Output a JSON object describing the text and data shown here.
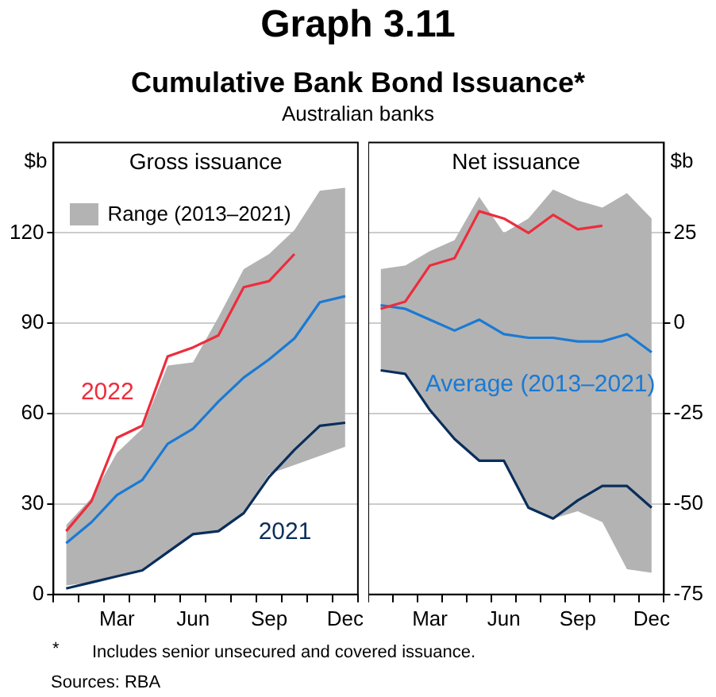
{
  "chart_data": [
    {
      "type": "line",
      "title": "Gross issuance",
      "ylabel": "$b",
      "annotations": [
        "Graph 3.11",
        "Cumulative Bank Bond Issuance*",
        "Australian banks",
        "*",
        "Includes senior unsecured and covered issuance.",
        "Sources: RBA",
        "Range (2013–2021)"
      ],
      "categories": [
        null,
        null,
        "Mar",
        null,
        null,
        "Jun",
        null,
        null,
        "Sep",
        null,
        null,
        "Dec"
      ],
      "series": [
        {
          "name": "2022",
          "type": "line",
          "color": "#ee2c3c",
          "values": [
            21,
            31,
            52,
            56,
            79,
            82,
            86,
            102,
            104,
            113,
            null,
            null
          ]
        },
        {
          "type": "line",
          "color": "#1a7ad4",
          "values": [
            17,
            24,
            33,
            38,
            50,
            55,
            64,
            72,
            78,
            85,
            97,
            99
          ],
          "lower": [
            3,
            4,
            6,
            8,
            14,
            20,
            21,
            27,
            40,
            43,
            46,
            49
          ],
          "upper": [
            23,
            32,
            47,
            55,
            76,
            77,
            92,
            108,
            113,
            121,
            134,
            135
          ]
        },
        {
          "name": "2021",
          "type": "line",
          "color": "#0a2e5c",
          "values": [
            2,
            4,
            6,
            8,
            14,
            20,
            21,
            27,
            39,
            48,
            56,
            57
          ]
        }
      ],
      "ylim": [
        0,
        150
      ],
      "yticks": [
        0,
        30,
        60,
        90,
        120
      ],
      "grid": "y"
    },
    {
      "type": "line",
      "title": "Net issuance",
      "ylabel": "$b",
      "categories": [
        null,
        null,
        "Mar",
        null,
        null,
        "Jun",
        null,
        null,
        "Sep",
        null,
        null,
        "Dec"
      ],
      "series": [
        {
          "type": "line",
          "color": "#ee2c3c",
          "values": [
            4,
            6,
            16,
            18,
            31,
            29,
            25,
            30,
            26,
            27,
            null,
            null
          ]
        },
        {
          "name": "Average (2013–2021)",
          "type": "line",
          "color": "#1a7ad4",
          "values": [
            5,
            4,
            1,
            -2,
            1,
            -3,
            -4,
            -4,
            -5,
            -5,
            -3,
            -8
          ],
          "lower": [
            -13,
            -14,
            -24,
            -32,
            -38,
            -38,
            -51,
            -54,
            -52,
            -55,
            -68,
            -69
          ],
          "upper": [
            15,
            16,
            20,
            23,
            35,
            25,
            29,
            37,
            34,
            32,
            36,
            29
          ]
        },
        {
          "type": "line",
          "color": "#0a2e5c",
          "values": [
            -13,
            -14,
            -24,
            -32,
            -38,
            -38,
            -51,
            -54,
            -49,
            -45,
            -45,
            -51
          ]
        }
      ],
      "ylim": [
        -75,
        50
      ],
      "yticks": [
        -75,
        -50,
        -25,
        0,
        25
      ],
      "grid": "y"
    }
  ]
}
